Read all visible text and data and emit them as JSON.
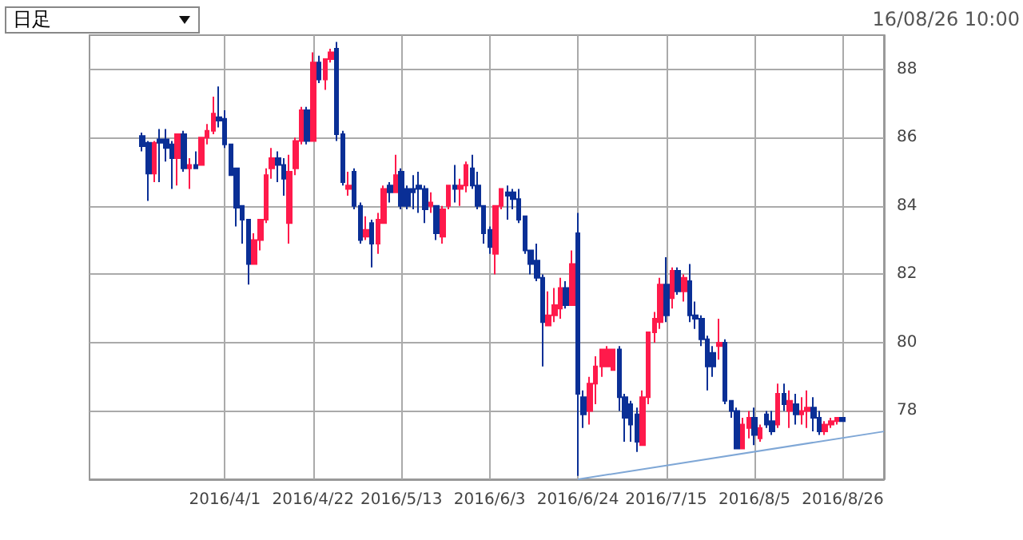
{
  "chart_data": {
    "type": "candlestick",
    "annotations": [
      "日足",
      "16/08/26 10:00"
    ],
    "categories": [
      null,
      null,
      null,
      null,
      null,
      null,
      null,
      null,
      null,
      null,
      null,
      null,
      null,
      null,
      null,
      null,
      null,
      null,
      null,
      null,
      null,
      null,
      null,
      "2016/4/1",
      null,
      null,
      null,
      null,
      null,
      null,
      null,
      null,
      null,
      null,
      null,
      null,
      null,
      null,
      "2016/4/22",
      null,
      null,
      null,
      null,
      null,
      null,
      null,
      null,
      null,
      null,
      null,
      null,
      null,
      null,
      "2016/5/13",
      null,
      null,
      null,
      null,
      null,
      null,
      null,
      null,
      null,
      null,
      null,
      null,
      null,
      null,
      "2016/6/3",
      null,
      null,
      null,
      null,
      null,
      null,
      null,
      null,
      null,
      null,
      null,
      null,
      null,
      null,
      "2016/6/24",
      null,
      null,
      null,
      null,
      null,
      null,
      null,
      null,
      null,
      null,
      null,
      null,
      null,
      null,
      "2016/7/15",
      null,
      null,
      null,
      null,
      null,
      null,
      null,
      null,
      null,
      null,
      null,
      null,
      null,
      null,
      "2016/8/5",
      null,
      null,
      null,
      null,
      null,
      null,
      null,
      null,
      null,
      null,
      null,
      null,
      null,
      null,
      "2016/8/26",
      null,
      null,
      null,
      null,
      null,
      null,
      null
    ],
    "ylim": [
      76,
      89
    ],
    "yticks": [
      78,
      80,
      82,
      84,
      86,
      88
    ],
    "grid": true,
    "series": [
      {
        "ohlc": [
          null,
          null,
          null,
          null,
          null,
          null,
          null,
          null,
          null,
          [
            86.05,
            86.15,
            85.6,
            85.75
          ],
          [
            85.85,
            85.9,
            84.15,
            84.95
          ],
          [
            84.95,
            85.9,
            84.7,
            85.85
          ],
          [
            85.95,
            86.25,
            84.7,
            85.85
          ],
          [
            85.95,
            86.25,
            85.3,
            85.7
          ],
          [
            85.8,
            85.9,
            84.5,
            85.4
          ],
          [
            85.4,
            86.1,
            84.6,
            86.1
          ],
          [
            86.1,
            86.2,
            85.0,
            85.1
          ],
          [
            85.1,
            85.4,
            84.5,
            85.2
          ],
          [
            85.2,
            85.6,
            85.1,
            85.1
          ],
          [
            85.2,
            86.0,
            85.2,
            86.0
          ],
          [
            86.0,
            86.4,
            85.8,
            86.2
          ],
          [
            86.2,
            87.2,
            86.1,
            86.7
          ],
          [
            86.6,
            87.5,
            86.3,
            86.5
          ],
          [
            86.55,
            86.8,
            85.7,
            85.8
          ],
          [
            85.8,
            85.8,
            84.9,
            84.9
          ],
          [
            85.1,
            85.1,
            83.4,
            83.95
          ],
          [
            84.0,
            84.0,
            82.9,
            83.6
          ],
          [
            83.6,
            83.6,
            81.7,
            82.3
          ],
          [
            82.3,
            83.2,
            82.3,
            83.0
          ],
          [
            83.0,
            83.6,
            82.7,
            83.6
          ],
          [
            83.6,
            85.1,
            83.5,
            84.9
          ],
          [
            85.1,
            85.7,
            84.8,
            85.4
          ],
          [
            85.4,
            85.6,
            84.7,
            85.2
          ],
          [
            85.2,
            85.4,
            84.3,
            84.8
          ],
          [
            83.5,
            85.5,
            82.9,
            85.0
          ],
          [
            85.1,
            86.0,
            84.9,
            85.9
          ],
          [
            85.9,
            86.9,
            85.8,
            86.8
          ],
          [
            86.8,
            86.9,
            85.8,
            85.9
          ],
          [
            85.9,
            88.5,
            85.9,
            88.2
          ],
          [
            88.2,
            88.4,
            87.6,
            87.7
          ],
          [
            87.7,
            88.3,
            87.4,
            88.3
          ],
          [
            88.3,
            88.6,
            88.2,
            88.5
          ],
          [
            88.6,
            88.8,
            85.9,
            86.1
          ],
          [
            86.1,
            86.2,
            84.6,
            84.7
          ],
          [
            84.5,
            85.0,
            84.3,
            84.6
          ],
          [
            85.0,
            85.1,
            83.9,
            84.0
          ],
          [
            84.0,
            84.1,
            82.9,
            83.0
          ],
          [
            83.1,
            83.7,
            83.0,
            83.3
          ],
          [
            83.5,
            83.6,
            82.2,
            82.9
          ],
          [
            82.9,
            83.8,
            82.6,
            83.6
          ],
          [
            83.5,
            84.6,
            83.5,
            84.5
          ],
          [
            84.6,
            84.7,
            84.1,
            84.4
          ],
          [
            84.4,
            85.5,
            84.4,
            84.9
          ],
          [
            85.0,
            85.1,
            83.9,
            84.0
          ],
          [
            84.5,
            84.6,
            83.9,
            84.0
          ],
          [
            84.5,
            84.9,
            83.9,
            84.4
          ],
          [
            84.6,
            85.0,
            83.8,
            84.5
          ],
          [
            84.5,
            84.6,
            83.5,
            83.9
          ],
          [
            84.0,
            84.4,
            83.8,
            84.1
          ],
          [
            84.0,
            84.0,
            83.0,
            83.2
          ],
          [
            83.1,
            84.0,
            82.9,
            83.9
          ],
          [
            84.0,
            84.6,
            83.9,
            84.6
          ],
          [
            84.6,
            85.2,
            84.1,
            84.5
          ],
          [
            84.5,
            84.8,
            84.0,
            84.6
          ],
          [
            84.6,
            85.3,
            84.4,
            85.2
          ],
          [
            85.1,
            85.5,
            84.5,
            84.6
          ],
          [
            84.6,
            85.0,
            83.9,
            84.0
          ],
          [
            84.0,
            84.0,
            82.9,
            83.2
          ],
          [
            83.3,
            83.4,
            82.6,
            82.8
          ],
          [
            82.6,
            84.0,
            82.0,
            84.0
          ],
          [
            84.0,
            84.5,
            83.9,
            84.5
          ],
          [
            84.4,
            84.6,
            83.6,
            84.3
          ],
          [
            84.4,
            84.5,
            83.9,
            84.2
          ],
          [
            84.2,
            84.5,
            83.5,
            83.6
          ],
          [
            83.7,
            83.7,
            82.6,
            82.7
          ],
          [
            82.7,
            82.7,
            82.0,
            82.3
          ],
          [
            82.4,
            82.9,
            81.8,
            81.9
          ],
          [
            81.9,
            82.0,
            79.3,
            80.6
          ],
          [
            80.5,
            81.5,
            80.5,
            80.8
          ],
          [
            80.8,
            81.6,
            80.6,
            81.1
          ],
          [
            81.0,
            81.9,
            80.7,
            81.6
          ],
          [
            81.6,
            81.8,
            81.0,
            81.1
          ],
          [
            81.1,
            82.7,
            81.1,
            82.3
          ],
          [
            83.2,
            83.8,
            76.1,
            78.5
          ],
          [
            78.4,
            78.6,
            77.5,
            77.9
          ],
          [
            78.0,
            79.0,
            77.6,
            78.8
          ],
          [
            78.8,
            79.6,
            78.2,
            79.3
          ],
          [
            79.3,
            79.8,
            79.0,
            79.8
          ],
          [
            79.3,
            79.9,
            79.3,
            79.8
          ],
          [
            79.2,
            79.8,
            79.2,
            79.8
          ],
          [
            79.8,
            79.9,
            78.0,
            78.4
          ],
          [
            78.4,
            78.5,
            77.1,
            77.8
          ],
          [
            78.2,
            78.3,
            77.1,
            77.6
          ],
          [
            77.9,
            78.1,
            76.8,
            77.1
          ],
          [
            77.0,
            78.6,
            77.0,
            78.4
          ],
          [
            78.4,
            80.3,
            78.2,
            80.3
          ],
          [
            80.3,
            80.9,
            80.0,
            80.7
          ],
          [
            80.6,
            81.9,
            80.4,
            81.7
          ],
          [
            81.7,
            82.5,
            80.6,
            80.8
          ],
          [
            81.3,
            82.2,
            81.0,
            82.1
          ],
          [
            82.1,
            82.2,
            81.4,
            81.5
          ],
          [
            81.5,
            82.0,
            81.2,
            81.9
          ],
          [
            81.8,
            82.3,
            80.6,
            80.8
          ],
          [
            80.8,
            81.2,
            80.4,
            80.7
          ],
          [
            80.7,
            80.8,
            79.9,
            80.1
          ],
          [
            80.1,
            80.2,
            78.6,
            79.3
          ],
          [
            79.7,
            79.9,
            79.0,
            79.3
          ],
          [
            79.9,
            80.7,
            79.5,
            80.0
          ],
          [
            80.0,
            80.1,
            78.2,
            78.3
          ],
          [
            78.3,
            78.3,
            77.8,
            78.0
          ],
          [
            78.0,
            78.1,
            76.9,
            76.9
          ],
          [
            76.9,
            77.8,
            76.9,
            77.6
          ],
          [
            77.5,
            78.0,
            77.2,
            77.8
          ],
          [
            77.8,
            78.1,
            77.0,
            77.3
          ],
          [
            77.2,
            77.6,
            77.1,
            77.5
          ],
          [
            77.9,
            78.0,
            77.5,
            77.6
          ],
          [
            77.7,
            78.0,
            77.3,
            77.4
          ],
          [
            77.6,
            78.8,
            77.5,
            78.5
          ],
          [
            78.5,
            78.8,
            78.0,
            78.2
          ],
          [
            78.0,
            78.6,
            77.5,
            78.3
          ],
          [
            78.2,
            78.5,
            77.6,
            77.9
          ],
          [
            77.9,
            78.4,
            77.6,
            78.0
          ],
          [
            78.0,
            78.6,
            77.5,
            78.1
          ],
          [
            78.1,
            78.4,
            77.4,
            77.8
          ],
          [
            77.8,
            78.0,
            77.3,
            77.4
          ],
          [
            77.4,
            77.7,
            77.3,
            77.6
          ],
          [
            77.6,
            77.8,
            77.5,
            77.7
          ],
          [
            77.7,
            77.8,
            77.6,
            77.8
          ],
          [
            77.8,
            77.8,
            77.7,
            77.7
          ],
          null,
          null,
          null,
          null,
          null,
          null,
          null
        ],
        "colors": [
          null,
          null,
          null,
          null,
          null,
          null,
          null,
          null,
          null,
          "#0a2f96",
          "#0a2f96",
          "#ff1a4b",
          "#0a2f96",
          "#0a2f96",
          "#0a2f96",
          "#ff1a4b",
          "#0a2f96",
          "#ff1a4b",
          "#0a2f96",
          "#ff1a4b",
          "#ff1a4b",
          "#ff1a4b",
          "#0a2f96",
          "#0a2f96",
          "#0a2f96",
          "#0a2f96",
          "#0a2f96",
          "#0a2f96",
          "#ff1a4b",
          "#ff1a4b",
          "#ff1a4b",
          "#ff1a4b",
          "#0a2f96",
          "#0a2f96",
          "#ff1a4b",
          "#ff1a4b",
          "#ff1a4b",
          "#0a2f96",
          "#ff1a4b",
          "#0a2f96",
          "#ff1a4b",
          "#ff1a4b",
          "#0a2f96",
          "#0a2f96",
          "#ff1a4b",
          "#0a2f96",
          "#0a2f96",
          "#ff1a4b",
          "#0a2f96",
          "#ff1a4b",
          "#ff1a4b",
          "#0a2f96",
          "#ff1a4b",
          "#0a2f96",
          "#0a2f96",
          "#0a2f96",
          "#0a2f96",
          "#0a2f96",
          "#ff1a4b",
          "#0a2f96",
          "#ff1a4b",
          "#ff1a4b",
          "#0a2f96",
          "#ff1a4b",
          "#ff1a4b",
          "#0a2f96",
          "#0a2f96",
          "#0a2f96",
          "#0a2f96",
          "#ff1a4b",
          "#ff1a4b",
          "#0a2f96",
          "#0a2f96",
          "#0a2f96",
          "#0a2f96",
          "#0a2f96",
          "#0a2f96",
          "#0a2f96",
          "#ff1a4b",
          "#ff1a4b",
          "#ff1a4b",
          "#0a2f96",
          "#ff1a4b",
          "#0a2f96",
          "#0a2f96",
          "#ff1a4b",
          "#ff1a4b",
          "#ff1a4b",
          "#ff1a4b",
          "#ff1a4b",
          "#0a2f96",
          "#0a2f96",
          "#0a2f96",
          "#0a2f96",
          "#ff1a4b",
          "#ff1a4b",
          "#ff1a4b",
          "#ff1a4b",
          "#0a2f96",
          "#ff1a4b",
          "#0a2f96",
          "#ff1a4b",
          "#0a2f96",
          "#0a2f96",
          "#0a2f96",
          "#0a2f96",
          "#0a2f96",
          "#ff1a4b",
          "#0a2f96",
          "#0a2f96",
          "#0a2f96",
          "#ff1a4b",
          "#ff1a4b",
          "#0a2f96",
          "#ff1a4b",
          "#0a2f96",
          "#0a2f96",
          "#ff1a4b",
          "#0a2f96",
          "#ff1a4b",
          "#0a2f96",
          "#ff1a4b",
          "#ff1a4b",
          "#0a2f96",
          "#0a2f96",
          "#ff1a4b",
          "#ff1a4b",
          "#ff1a4b",
          "#0a2f96",
          null,
          null,
          null,
          null,
          null,
          null,
          null
        ]
      },
      {
        "type": "line",
        "color": "#7fa7d6",
        "values": [
          null,
          null,
          null,
          null,
          null,
          null,
          null,
          null,
          null,
          null,
          null,
          null,
          null,
          null,
          null,
          null,
          null,
          null,
          null,
          null,
          null,
          null,
          null,
          null,
          null,
          null,
          null,
          null,
          null,
          null,
          null,
          null,
          null,
          null,
          null,
          null,
          null,
          null,
          null,
          null,
          null,
          null,
          null,
          null,
          null,
          null,
          null,
          null,
          null,
          null,
          null,
          null,
          null,
          null,
          null,
          null,
          null,
          null,
          null,
          null,
          null,
          null,
          null,
          null,
          null,
          null,
          null,
          null,
          null,
          null,
          null,
          null,
          null,
          null,
          null,
          null,
          null,
          null,
          null,
          null,
          null,
          null,
          null,
          76.0,
          null,
          null,
          null,
          null,
          null,
          null,
          null,
          null,
          null,
          null,
          null,
          null,
          null,
          null,
          null,
          null,
          null,
          null,
          null,
          null,
          null,
          null,
          null,
          null,
          null,
          null,
          null,
          null,
          null,
          null,
          null,
          null,
          null,
          null,
          null,
          null,
          null,
          null,
          null,
          null,
          null,
          null,
          null,
          null,
          null,
          null,
          null,
          null,
          null,
          null,
          null,
          77.4
        ]
      }
    ]
  }
}
